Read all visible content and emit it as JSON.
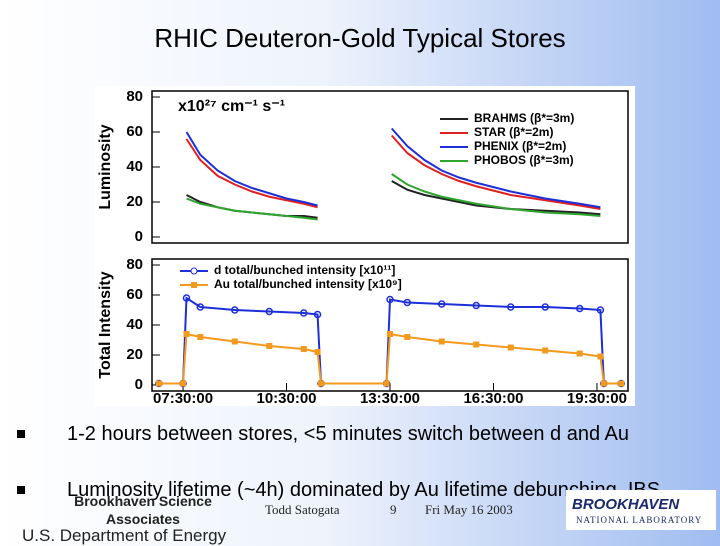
{
  "title": "RHIC Deuteron-Gold Typical Stores",
  "chart_data": [
    {
      "type": "line",
      "y_label": "Luminosity",
      "annotation": "x10²⁷ cm⁻¹ s⁻¹",
      "x": [
        7.6,
        8.0,
        8.5,
        9.0,
        9.5,
        10.0,
        10.5,
        11.0,
        11.4,
        12.5,
        13.55,
        14.0,
        14.5,
        15.0,
        15.5,
        16.0,
        17.0,
        18.0,
        19.0,
        19.6
      ],
      "xlim": [
        6.6,
        20.4
      ],
      "ylim": [
        0,
        80
      ],
      "yticks": [
        0,
        20,
        40,
        60,
        80
      ],
      "legend": "upper right",
      "series": [
        {
          "name": "BRAHMS (β*=3m)",
          "color": "#222222",
          "values": [
            24,
            20,
            17,
            15,
            14,
            13,
            12,
            12,
            11,
            null,
            32,
            27,
            24,
            22,
            20,
            18,
            16,
            15,
            14,
            13
          ]
        },
        {
          "name": "STAR (β*=2m)",
          "color": "#e02020",
          "values": [
            56,
            44,
            35,
            30,
            26,
            23,
            21,
            19,
            17,
            null,
            58,
            48,
            41,
            36,
            32,
            29,
            24,
            21,
            18,
            16
          ]
        },
        {
          "name": "PHENIX (β*=2m)",
          "color": "#1c2fd8",
          "values": [
            60,
            47,
            38,
            32,
            28,
            25,
            22,
            20,
            18,
            null,
            62,
            52,
            44,
            38,
            34,
            31,
            26,
            22,
            19,
            17
          ]
        },
        {
          "name": "PHOBOS (β*=3m)",
          "color": "#2fa52f",
          "values": [
            22,
            19,
            17,
            15,
            14,
            13,
            12,
            11,
            10,
            null,
            36,
            30,
            26,
            23,
            21,
            19,
            16,
            14,
            13,
            12
          ]
        }
      ]
    },
    {
      "type": "line",
      "y_label": "Total Intensity",
      "x": [
        6.8,
        7.5,
        7.6,
        8.0,
        9.0,
        10.0,
        11.0,
        11.4,
        11.5,
        13.4,
        13.5,
        14.0,
        15.0,
        16.0,
        17.0,
        18.0,
        19.0,
        19.6,
        19.7,
        20.2
      ],
      "xlim": [
        6.6,
        20.4
      ],
      "ylim": [
        0,
        80
      ],
      "yticks": [
        0,
        20,
        40,
        60,
        80
      ],
      "xticks": [
        {
          "value": 7.5,
          "label": "07:30:00"
        },
        {
          "value": 10.5,
          "label": "10:30:00"
        },
        {
          "value": 13.5,
          "label": "13:30:00"
        },
        {
          "value": 16.5,
          "label": "16:30:00"
        },
        {
          "value": 19.5,
          "label": "19:30:00"
        }
      ],
      "legend": "upper left",
      "series": [
        {
          "name": "d total/bunched intensity [x10¹¹]",
          "color": "#1c2fd8",
          "marker": "circle",
          "values": [
            1,
            1,
            58,
            52,
            50,
            49,
            48,
            47,
            1,
            1,
            57,
            55,
            54,
            53,
            52,
            52,
            51,
            50,
            1,
            1
          ]
        },
        {
          "name": "Au total/bunched intensity [x10⁹]",
          "color": "#f39a1e",
          "marker": "square",
          "values": [
            1,
            1,
            34,
            32,
            29,
            26,
            24,
            22,
            1,
            1,
            34,
            32,
            29,
            27,
            25,
            23,
            21,
            19,
            1,
            1
          ]
        }
      ]
    }
  ],
  "bullets": [
    "1-2 hours between stores, <5 minutes switch between d and Au",
    "Luminosity lifetime (~4h) dominated by Au lifetime debunching, IBS"
  ],
  "footer": {
    "org": "Brookhaven Science Associates",
    "author": "Todd Satogata",
    "page": "9",
    "date": "Fri May 16 2003",
    "agency": "U.S. Department of Energy",
    "logo_top": "BROOKHAVEN",
    "logo_bottom": "NATIONAL LABORATORY"
  }
}
